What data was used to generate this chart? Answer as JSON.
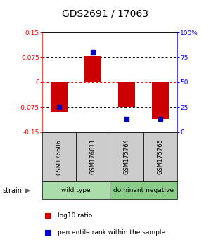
{
  "title": "GDS2691 / 17063",
  "samples": [
    "GSM176606",
    "GSM176611",
    "GSM175764",
    "GSM175765"
  ],
  "log10_ratios": [
    -0.09,
    0.081,
    -0.075,
    -0.11
  ],
  "percentile_ranks": [
    25,
    80,
    13,
    13
  ],
  "groups": [
    {
      "label": "wild type",
      "color": "#aaddaa",
      "samples": [
        0,
        1
      ]
    },
    {
      "label": "dominant negative",
      "color": "#88cc88",
      "samples": [
        2,
        3
      ]
    }
  ],
  "group_row_label": "strain",
  "bar_color": "#cc0000",
  "dot_color": "#0000cc",
  "ylim_left": [
    -0.15,
    0.15
  ],
  "ylim_right": [
    0,
    100
  ],
  "yticks_left": [
    -0.15,
    -0.075,
    0,
    0.075,
    0.15
  ],
  "yticks_right": [
    0,
    25,
    50,
    75,
    100
  ],
  "ytick_labels_left": [
    "-0.15",
    "-0.075",
    "0",
    "0.075",
    "0.15"
  ],
  "ytick_labels_right": [
    "0",
    "25",
    "50",
    "75",
    "100%"
  ],
  "legend_items": [
    {
      "color": "#cc0000",
      "label": "log10 ratio"
    },
    {
      "color": "#0000cc",
      "label": "percentile rank within the sample"
    }
  ],
  "bar_width": 0.5,
  "background_color": "#ffffff",
  "label_row_bg": "#cccccc",
  "title_fontsize": 10
}
